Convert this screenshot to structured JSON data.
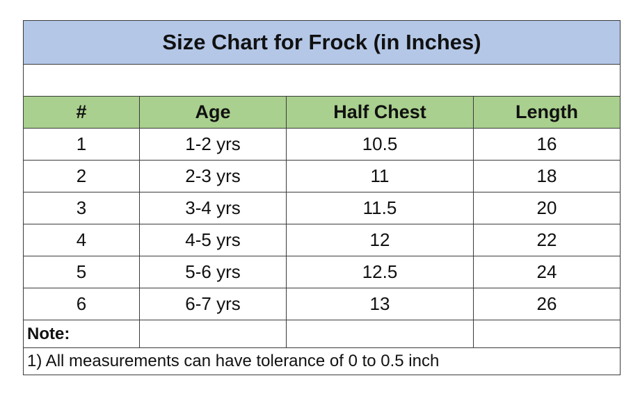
{
  "title": "Size Chart for Frock (in Inches)",
  "table": {
    "header": [
      "#",
      "Age",
      "Half Chest",
      "Length"
    ],
    "rows": [
      [
        "1",
        "1-2 yrs",
        "10.5",
        "16"
      ],
      [
        "2",
        "2-3 yrs",
        "11",
        "18"
      ],
      [
        "3",
        "3-4 yrs",
        "11.5",
        "20"
      ],
      [
        "4",
        "4-5 yrs",
        "12",
        "22"
      ],
      [
        "5",
        "5-6 yrs",
        "12.5",
        "24"
      ],
      [
        "6",
        "6-7 yrs",
        "13",
        "26"
      ]
    ]
  },
  "note": {
    "label": "Note:",
    "text": "1) All measurements can have tolerance of 0 to 0.5 inch"
  }
}
